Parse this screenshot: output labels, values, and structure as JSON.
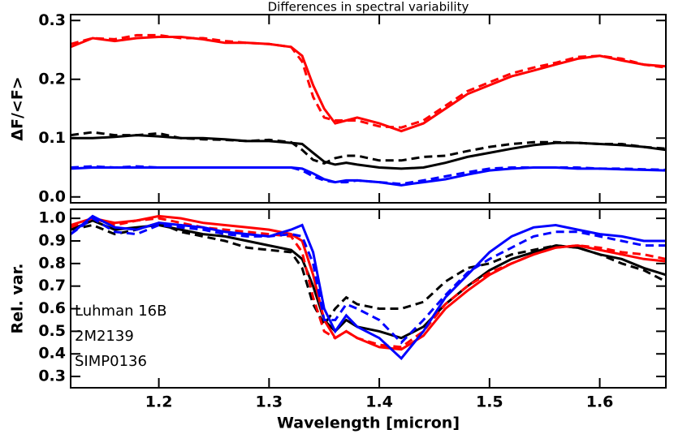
{
  "chart_data": [
    {
      "type": "line",
      "title": "Differences in spectral variability",
      "ylabel": "ΔF/<F>",
      "x": [
        1.12,
        1.14,
        1.16,
        1.18,
        1.2,
        1.22,
        1.24,
        1.26,
        1.28,
        1.3,
        1.32,
        1.33,
        1.34,
        1.35,
        1.36,
        1.37,
        1.38,
        1.4,
        1.42,
        1.44,
        1.46,
        1.48,
        1.5,
        1.52,
        1.54,
        1.56,
        1.58,
        1.6,
        1.62,
        1.64,
        1.66
      ],
      "xlim": [
        1.12,
        1.66
      ],
      "xticks": [
        1.2,
        1.3,
        1.4,
        1.5,
        1.6
      ],
      "xtick_labels": false,
      "ylim": [
        -0.01,
        0.31
      ],
      "yticks": [
        {
          "value": 0,
          "label": "0.0"
        },
        0.1,
        0.2,
        0.3
      ],
      "series": [
        {
          "color": "#ff0000",
          "dashed": false,
          "values": [
            0.255,
            0.27,
            0.265,
            0.27,
            0.272,
            0.272,
            0.268,
            0.262,
            0.262,
            0.26,
            0.255,
            0.24,
            0.19,
            0.15,
            0.125,
            0.13,
            0.135,
            0.125,
            0.112,
            0.125,
            0.15,
            0.175,
            0.19,
            0.205,
            0.215,
            0.225,
            0.235,
            0.24,
            0.232,
            0.225,
            0.222
          ]
        },
        {
          "color": "#ff0000",
          "dashed": true,
          "values": [
            0.26,
            0.27,
            0.268,
            0.275,
            0.275,
            0.27,
            0.27,
            0.265,
            0.262,
            0.26,
            0.255,
            0.23,
            0.17,
            0.135,
            0.13,
            0.13,
            0.13,
            0.12,
            0.118,
            0.13,
            0.155,
            0.18,
            0.195,
            0.21,
            0.22,
            0.228,
            0.238,
            0.24,
            0.235,
            0.225,
            0.22
          ]
        },
        {
          "color": "#000000",
          "dashed": false,
          "values": [
            0.1,
            0.1,
            0.102,
            0.105,
            0.103,
            0.1,
            0.1,
            0.098,
            0.095,
            0.095,
            0.092,
            0.09,
            0.075,
            0.06,
            0.055,
            0.058,
            0.055,
            0.05,
            0.048,
            0.05,
            0.058,
            0.068,
            0.075,
            0.082,
            0.088,
            0.092,
            0.092,
            0.09,
            0.088,
            0.085,
            0.08
          ]
        },
        {
          "color": "#000000",
          "dashed": true,
          "values": [
            0.105,
            0.11,
            0.105,
            0.105,
            0.108,
            0.1,
            0.098,
            0.097,
            0.095,
            0.097,
            0.093,
            0.08,
            0.063,
            0.057,
            0.066,
            0.07,
            0.07,
            0.062,
            0.062,
            0.068,
            0.07,
            0.078,
            0.085,
            0.09,
            0.093,
            0.093,
            0.092,
            0.09,
            0.09,
            0.085,
            0.082
          ]
        },
        {
          "color": "#0000ff",
          "dashed": false,
          "values": [
            0.048,
            0.05,
            0.05,
            0.05,
            0.05,
            0.05,
            0.05,
            0.05,
            0.05,
            0.05,
            0.05,
            0.048,
            0.04,
            0.03,
            0.025,
            0.028,
            0.028,
            0.025,
            0.02,
            0.025,
            0.03,
            0.038,
            0.045,
            0.048,
            0.05,
            0.05,
            0.048,
            0.048,
            0.047,
            0.046,
            0.045
          ]
        },
        {
          "color": "#0000ff",
          "dashed": true,
          "values": [
            0.05,
            0.052,
            0.05,
            0.052,
            0.05,
            0.05,
            0.05,
            0.05,
            0.05,
            0.05,
            0.05,
            0.045,
            0.035,
            0.028,
            0.025,
            0.025,
            0.028,
            0.025,
            0.022,
            0.028,
            0.035,
            0.042,
            0.048,
            0.05,
            0.05,
            0.05,
            0.05,
            0.048,
            0.048,
            0.047,
            0.046
          ]
        }
      ]
    },
    {
      "type": "line",
      "ylabel": "Rel. var.",
      "xlabel": "Wavelength [micron]",
      "legend": "left",
      "x": [
        1.12,
        1.14,
        1.16,
        1.18,
        1.2,
        1.22,
        1.24,
        1.26,
        1.28,
        1.3,
        1.32,
        1.33,
        1.34,
        1.35,
        1.36,
        1.37,
        1.38,
        1.4,
        1.42,
        1.44,
        1.46,
        1.48,
        1.5,
        1.52,
        1.54,
        1.56,
        1.58,
        1.6,
        1.62,
        1.64,
        1.66
      ],
      "xlim": [
        1.12,
        1.66
      ],
      "xticks": [
        1.2,
        1.3,
        1.4,
        1.5,
        1.6
      ],
      "xtick_labels": true,
      "ylim": [
        0.25,
        1.04
      ],
      "yticks": [
        0.3,
        0.4,
        0.5,
        0.6,
        0.7,
        0.8,
        0.9,
        {
          "value": 1,
          "label": "1.0"
        }
      ],
      "series": [
        {
          "name": "Luhman 16B",
          "color": "#000000",
          "dashed": false,
          "values": [
            0.95,
            0.99,
            0.95,
            0.96,
            0.97,
            0.95,
            0.93,
            0.92,
            0.9,
            0.88,
            0.86,
            0.82,
            0.7,
            0.55,
            0.5,
            0.55,
            0.52,
            0.5,
            0.47,
            0.52,
            0.62,
            0.7,
            0.77,
            0.82,
            0.85,
            0.88,
            0.87,
            0.84,
            0.82,
            0.78,
            0.75
          ]
        },
        {
          "color": "#000000",
          "dashed": true,
          "values": [
            0.95,
            0.97,
            0.93,
            0.95,
            0.98,
            0.94,
            0.92,
            0.9,
            0.87,
            0.86,
            0.85,
            0.78,
            0.62,
            0.53,
            0.6,
            0.65,
            0.62,
            0.6,
            0.6,
            0.63,
            0.72,
            0.78,
            0.8,
            0.84,
            0.86,
            0.88,
            0.87,
            0.84,
            0.8,
            0.77,
            0.72
          ]
        },
        {
          "name": "2M2139",
          "color": "#ff0000",
          "dashed": false,
          "values": [
            0.97,
            1.0,
            0.98,
            0.99,
            1.01,
            1.0,
            0.98,
            0.97,
            0.96,
            0.95,
            0.93,
            0.9,
            0.75,
            0.55,
            0.47,
            0.5,
            0.47,
            0.43,
            0.42,
            0.48,
            0.6,
            0.68,
            0.75,
            0.8,
            0.84,
            0.87,
            0.88,
            0.86,
            0.84,
            0.82,
            0.81
          ]
        },
        {
          "color": "#ff0000",
          "dashed": true,
          "values": [
            0.96,
            1.0,
            0.97,
            0.99,
            1.0,
            0.98,
            0.96,
            0.95,
            0.94,
            0.93,
            0.92,
            0.85,
            0.65,
            0.5,
            0.47,
            0.5,
            0.47,
            0.44,
            0.43,
            0.5,
            0.62,
            0.7,
            0.76,
            0.8,
            0.84,
            0.87,
            0.88,
            0.87,
            0.85,
            0.84,
            0.82
          ]
        },
        {
          "name": "SIMP0136",
          "color": "#0000ff",
          "dashed": false,
          "values": [
            0.93,
            1.01,
            0.96,
            0.95,
            0.98,
            0.97,
            0.96,
            0.94,
            0.93,
            0.92,
            0.95,
            0.97,
            0.85,
            0.6,
            0.5,
            0.57,
            0.52,
            0.47,
            0.38,
            0.5,
            0.65,
            0.75,
            0.85,
            0.92,
            0.96,
            0.97,
            0.95,
            0.93,
            0.92,
            0.9,
            0.9
          ]
        },
        {
          "color": "#0000ff",
          "dashed": true,
          "values": [
            0.93,
            1.0,
            0.94,
            0.93,
            0.97,
            0.96,
            0.95,
            0.93,
            0.92,
            0.92,
            0.93,
            0.92,
            0.8,
            0.55,
            0.55,
            0.62,
            0.6,
            0.55,
            0.45,
            0.55,
            0.66,
            0.76,
            0.82,
            0.87,
            0.92,
            0.94,
            0.94,
            0.92,
            0.9,
            0.88,
            0.88
          ]
        }
      ]
    }
  ]
}
